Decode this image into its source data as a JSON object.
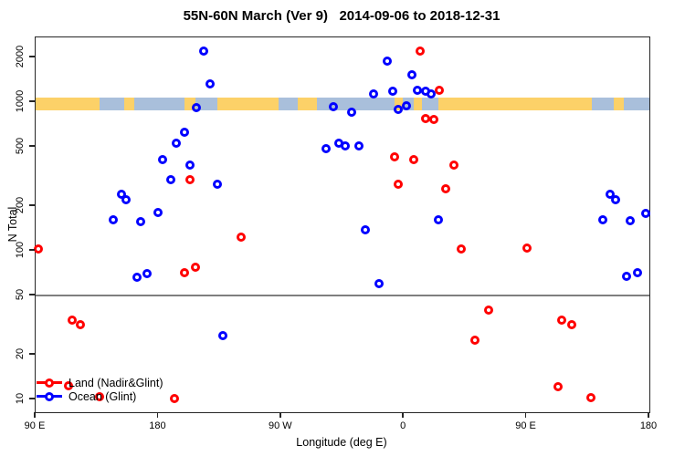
{
  "chart_data": {
    "type": "scatter",
    "title": "55N-60N March (Ver 9)   2014-09-06 to 2018-12-31",
    "xlabel": "Longitude (deg E)",
    "ylabel": "N Total",
    "x_axis": {
      "range": [
        90,
        540
      ],
      "ticks": [
        {
          "pos": 90,
          "label": "90 E"
        },
        {
          "pos": 180,
          "label": "180"
        },
        {
          "pos": 270,
          "label": "90 W"
        },
        {
          "pos": 360,
          "label": "0"
        },
        {
          "pos": 450,
          "label": "90 E"
        },
        {
          "pos": 540,
          "label": "180"
        }
      ]
    },
    "y_axis": {
      "scale": "log",
      "range": [
        8.2,
        2730
      ],
      "ticks": [
        {
          "pos": 10,
          "label": "10"
        },
        {
          "pos": 20,
          "label": "20"
        },
        {
          "pos": 50,
          "label": "50"
        },
        {
          "pos": 100,
          "label": "100"
        },
        {
          "pos": 200,
          "label": "200"
        },
        {
          "pos": 500,
          "label": "500"
        },
        {
          "pos": 1000,
          "label": "1000"
        },
        {
          "pos": 2000,
          "label": "2000"
        }
      ]
    },
    "reference_line_y": 50,
    "map_band": {
      "y_range": [
        880,
        1070
      ],
      "land_color": "#FCD168",
      "ocean_color": "#A9BFDB",
      "segments": [
        {
          "start": 90,
          "end": 137,
          "type": "land"
        },
        {
          "start": 137,
          "end": 155,
          "type": "ocean"
        },
        {
          "start": 155,
          "end": 162,
          "type": "land"
        },
        {
          "start": 162,
          "end": 199,
          "type": "ocean"
        },
        {
          "start": 199,
          "end": 207,
          "type": "land"
        },
        {
          "start": 207,
          "end": 223,
          "type": "ocean"
        },
        {
          "start": 223,
          "end": 268,
          "type": "land"
        },
        {
          "start": 268,
          "end": 282,
          "type": "ocean"
        },
        {
          "start": 282,
          "end": 296,
          "type": "land"
        },
        {
          "start": 296,
          "end": 353,
          "type": "ocean"
        },
        {
          "start": 353,
          "end": 359,
          "type": "land"
        },
        {
          "start": 359,
          "end": 367,
          "type": "ocean"
        },
        {
          "start": 367,
          "end": 373,
          "type": "land"
        },
        {
          "start": 373,
          "end": 385,
          "type": "ocean"
        },
        {
          "start": 385,
          "end": 498,
          "type": "land"
        },
        {
          "start": 498,
          "end": 514,
          "type": "ocean"
        },
        {
          "start": 514,
          "end": 521,
          "type": "land"
        },
        {
          "start": 521,
          "end": 540,
          "type": "ocean"
        }
      ]
    },
    "series": [
      {
        "name": "Land (Nadir&Glint)",
        "color": "#FF0000",
        "points": [
          [
            203,
            300
          ],
          [
            372,
            2200
          ],
          [
            386,
            1200
          ],
          [
            376,
            780
          ],
          [
            382,
            760
          ],
          [
            353,
            430
          ],
          [
            367,
            410
          ],
          [
            356,
            280
          ],
          [
            391,
            260
          ],
          [
            397,
            380
          ],
          [
            92,
            103
          ],
          [
            199,
            71
          ],
          [
            207,
            78
          ],
          [
            117,
            34
          ],
          [
            123,
            32
          ],
          [
            114,
            12.4
          ],
          [
            137,
            10.4
          ],
          [
            192,
            10.1
          ],
          [
            241,
            124
          ],
          [
            402,
            103
          ],
          [
            450,
            104
          ],
          [
            422,
            40
          ],
          [
            476,
            34
          ],
          [
            483,
            32
          ],
          [
            412,
            25
          ],
          [
            473,
            12.2
          ],
          [
            497,
            10.3
          ]
        ]
      },
      {
        "name": "Ocean (Glint)",
        "color": "#0000FF",
        "points": [
          [
            213,
            2200
          ],
          [
            218,
            1330
          ],
          [
            208,
            920
          ],
          [
            199,
            630
          ],
          [
            193,
            530
          ],
          [
            183,
            410
          ],
          [
            203,
            380
          ],
          [
            189,
            300
          ],
          [
            223,
            280
          ],
          [
            153,
            240
          ],
          [
            156,
            220
          ],
          [
            180,
            181
          ],
          [
            147,
            162
          ],
          [
            167,
            158
          ],
          [
            348,
            1890
          ],
          [
            366,
            1530
          ],
          [
            338,
            1140
          ],
          [
            352,
            1190
          ],
          [
            370,
            1200
          ],
          [
            376,
            1190
          ],
          [
            380,
            1140
          ],
          [
            308,
            930
          ],
          [
            322,
            860
          ],
          [
            356,
            890
          ],
          [
            362,
            940
          ],
          [
            303,
            490
          ],
          [
            312,
            530
          ],
          [
            317,
            510
          ],
          [
            327,
            510
          ],
          [
            385,
            162
          ],
          [
            332,
            138
          ],
          [
            511,
            240
          ],
          [
            515,
            220
          ],
          [
            537,
            178
          ],
          [
            506,
            162
          ],
          [
            526,
            159
          ],
          [
            164,
            66
          ],
          [
            172,
            70
          ],
          [
            227,
            27
          ],
          [
            342,
            60
          ],
          [
            523,
            67
          ],
          [
            531,
            71
          ]
        ]
      }
    ],
    "legend_position": "bottom-left",
    "grid": "off"
  }
}
